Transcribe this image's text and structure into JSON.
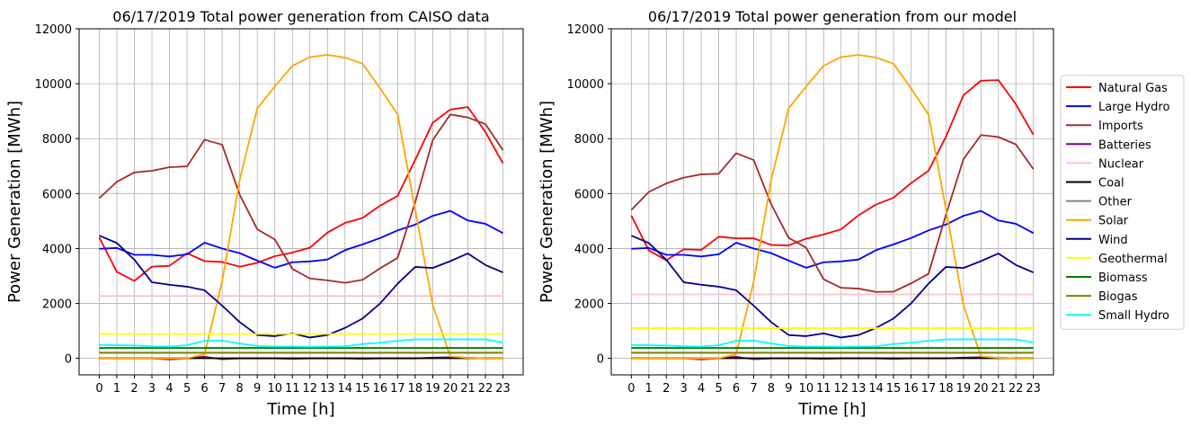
{
  "chart_data": [
    {
      "type": "line",
      "title": "06/17/2019 Total power generation from CAISO data",
      "xlabel": "Time [h]",
      "ylabel": "Power Generation [MWh]",
      "x": [
        0,
        1,
        2,
        3,
        4,
        5,
        6,
        7,
        8,
        9,
        10,
        11,
        12,
        13,
        14,
        15,
        16,
        17,
        18,
        19,
        20,
        21,
        22,
        23
      ],
      "xlim": [
        -1.15,
        24.15
      ],
      "ylim": [
        -600,
        12000
      ],
      "yticks": [
        0,
        2000,
        4000,
        6000,
        8000,
        10000,
        12000
      ],
      "grid": true,
      "series": [
        {
          "name": "Natural Gas",
          "color": "#ff0000",
          "values": [
            4400,
            3150,
            2820,
            3340,
            3370,
            3830,
            3540,
            3510,
            3340,
            3480,
            3720,
            3850,
            4030,
            4580,
            4930,
            5110,
            5560,
            5920,
            7230,
            8580,
            9060,
            9150,
            8240,
            7100
          ]
        },
        {
          "name": "Large Hydro",
          "color": "#0000ff",
          "values": [
            3990,
            4020,
            3770,
            3770,
            3710,
            3790,
            4210,
            4000,
            3830,
            3560,
            3300,
            3500,
            3530,
            3600,
            3940,
            4150,
            4380,
            4660,
            4870,
            5190,
            5370,
            5020,
            4900,
            4560
          ]
        },
        {
          "name": "Imports",
          "color": "#a52a2a",
          "values": [
            5830,
            6430,
            6770,
            6830,
            6960,
            6990,
            7960,
            7780,
            5960,
            4700,
            4330,
            3260,
            2910,
            2840,
            2750,
            2860,
            3280,
            3660,
            5680,
            7950,
            8880,
            8770,
            8530,
            7580
          ]
        },
        {
          "name": "Batteries",
          "color": "#800080",
          "values": [
            0,
            0,
            0,
            0,
            -40,
            0,
            60,
            -30,
            0,
            0,
            0,
            -20,
            0,
            0,
            0,
            -20,
            0,
            0,
            0,
            30,
            40,
            20,
            0,
            0
          ]
        },
        {
          "name": "Nuclear",
          "color": "#ffc0cb",
          "values": [
            2270,
            2270,
            2270,
            2270,
            2270,
            2270,
            2270,
            2270,
            2270,
            2270,
            2270,
            2270,
            2270,
            2270,
            2270,
            2270,
            2270,
            2270,
            2270,
            2270,
            2270,
            2270,
            2270,
            2270
          ]
        },
        {
          "name": "Coal",
          "color": "#000000",
          "values": [
            5,
            5,
            5,
            5,
            5,
            5,
            5,
            5,
            5,
            5,
            5,
            5,
            5,
            5,
            5,
            5,
            5,
            5,
            5,
            5,
            5,
            5,
            5,
            5
          ]
        },
        {
          "name": "Other",
          "color": "#808080",
          "values": [
            200,
            200,
            200,
            200,
            200,
            200,
            200,
            200,
            200,
            200,
            200,
            200,
            200,
            200,
            200,
            200,
            200,
            200,
            200,
            200,
            200,
            200,
            200,
            200
          ]
        },
        {
          "name": "Solar",
          "color": "#ffa500",
          "values": [
            0,
            0,
            0,
            0,
            0,
            0,
            150,
            2800,
            6500,
            9100,
            9900,
            10650,
            10970,
            11050,
            10950,
            10730,
            9830,
            8880,
            5420,
            1940,
            70,
            20,
            0,
            0
          ]
        },
        {
          "name": "Wind",
          "color": "#00008b",
          "values": [
            4470,
            4200,
            3590,
            2770,
            2680,
            2610,
            2480,
            1920,
            1320,
            850,
            810,
            910,
            760,
            850,
            1110,
            1450,
            2000,
            2720,
            3330,
            3290,
            3540,
            3820,
            3400,
            3130
          ]
        },
        {
          "name": "Geothermal",
          "color": "#ffff00",
          "values": [
            890,
            890,
            890,
            890,
            890,
            890,
            890,
            890,
            890,
            890,
            890,
            890,
            890,
            890,
            890,
            890,
            890,
            890,
            890,
            890,
            890,
            890,
            890,
            890
          ]
        },
        {
          "name": "Biomass",
          "color": "#008000",
          "values": [
            380,
            380,
            380,
            380,
            380,
            380,
            380,
            380,
            380,
            380,
            380,
            380,
            380,
            380,
            380,
            380,
            380,
            380,
            380,
            380,
            380,
            380,
            380,
            380
          ]
        },
        {
          "name": "Biogas",
          "color": "#808000",
          "values": [
            210,
            210,
            210,
            210,
            210,
            210,
            210,
            210,
            210,
            210,
            210,
            210,
            210,
            210,
            210,
            210,
            210,
            210,
            210,
            210,
            210,
            210,
            210,
            210
          ]
        },
        {
          "name": "Small Hydro",
          "color": "#00ffff",
          "values": [
            490,
            480,
            470,
            440,
            430,
            480,
            640,
            650,
            540,
            450,
            430,
            430,
            420,
            430,
            440,
            520,
            570,
            640,
            690,
            690,
            690,
            690,
            690,
            580
          ]
        }
      ]
    },
    {
      "type": "line",
      "title": "06/17/2019 Total power generation from our model",
      "xlabel": "Time [h]",
      "ylabel": "Power Generation [MWh]",
      "x": [
        0,
        1,
        2,
        3,
        4,
        5,
        6,
        7,
        8,
        9,
        10,
        11,
        12,
        13,
        14,
        15,
        16,
        17,
        18,
        19,
        20,
        21,
        22,
        23
      ],
      "xlim": [
        -1.15,
        24.15
      ],
      "ylim": [
        -600,
        12000
      ],
      "yticks": [
        0,
        2000,
        4000,
        6000,
        8000,
        10000,
        12000
      ],
      "grid": true,
      "legend": "right",
      "series": [
        {
          "name": "Natural Gas",
          "color": "#ff0000",
          "values": [
            5200,
            3930,
            3570,
            3970,
            3950,
            4430,
            4370,
            4370,
            4130,
            4110,
            4360,
            4510,
            4700,
            5210,
            5600,
            5850,
            6380,
            6830,
            8070,
            9580,
            10110,
            10130,
            9250,
            8140
          ]
        },
        {
          "name": "Large Hydro",
          "color": "#0000ff",
          "values": [
            3990,
            4020,
            3770,
            3770,
            3710,
            3790,
            4210,
            4000,
            3830,
            3560,
            3300,
            3500,
            3530,
            3600,
            3940,
            4150,
            4380,
            4660,
            4870,
            5190,
            5370,
            5020,
            4900,
            4560
          ]
        },
        {
          "name": "Imports",
          "color": "#a52a2a",
          "values": [
            5400,
            6060,
            6370,
            6580,
            6700,
            6720,
            7470,
            7220,
            5610,
            4390,
            4030,
            2880,
            2570,
            2540,
            2420,
            2430,
            2730,
            3080,
            5230,
            7250,
            8130,
            8060,
            7790,
            6890
          ]
        },
        {
          "name": "Batteries",
          "color": "#800080",
          "values": [
            0,
            0,
            0,
            0,
            -40,
            0,
            60,
            -30,
            0,
            0,
            0,
            -20,
            0,
            0,
            0,
            -20,
            0,
            0,
            0,
            30,
            40,
            20,
            0,
            0
          ]
        },
        {
          "name": "Nuclear",
          "color": "#ffc0cb",
          "values": [
            2330,
            2330,
            2330,
            2330,
            2330,
            2330,
            2330,
            2330,
            2330,
            2330,
            2330,
            2330,
            2330,
            2330,
            2330,
            2330,
            2330,
            2330,
            2330,
            2330,
            2330,
            2330,
            2330,
            2330
          ]
        },
        {
          "name": "Coal",
          "color": "#000000",
          "values": [
            5,
            5,
            5,
            5,
            5,
            5,
            5,
            5,
            5,
            5,
            5,
            5,
            5,
            5,
            5,
            5,
            5,
            5,
            5,
            5,
            5,
            5,
            5,
            5
          ]
        },
        {
          "name": "Other",
          "color": "#808080",
          "values": [
            200,
            200,
            200,
            200,
            200,
            200,
            200,
            200,
            200,
            200,
            200,
            200,
            200,
            200,
            200,
            200,
            200,
            200,
            200,
            200,
            200,
            200,
            200,
            200
          ]
        },
        {
          "name": "Solar",
          "color": "#ffa500",
          "values": [
            0,
            0,
            0,
            0,
            0,
            0,
            150,
            2800,
            6500,
            9100,
            9900,
            10650,
            10970,
            11050,
            10950,
            10730,
            9830,
            8880,
            5420,
            1940,
            70,
            20,
            0,
            0
          ]
        },
        {
          "name": "Wind",
          "color": "#00008b",
          "values": [
            4470,
            4200,
            3590,
            2770,
            2680,
            2610,
            2480,
            1920,
            1320,
            850,
            810,
            910,
            760,
            850,
            1110,
            1450,
            2000,
            2720,
            3330,
            3290,
            3540,
            3820,
            3400,
            3130
          ]
        },
        {
          "name": "Geothermal",
          "color": "#ffff00",
          "values": [
            1100,
            1100,
            1100,
            1100,
            1100,
            1100,
            1100,
            1100,
            1100,
            1100,
            1100,
            1100,
            1100,
            1100,
            1100,
            1100,
            1100,
            1100,
            1100,
            1100,
            1100,
            1100,
            1100,
            1100
          ]
        },
        {
          "name": "Biomass",
          "color": "#008000",
          "values": [
            380,
            380,
            380,
            380,
            380,
            380,
            380,
            380,
            380,
            380,
            380,
            380,
            380,
            380,
            380,
            380,
            380,
            380,
            380,
            380,
            380,
            380,
            380,
            380
          ]
        },
        {
          "name": "Biogas",
          "color": "#808000",
          "values": [
            210,
            210,
            210,
            210,
            210,
            210,
            210,
            210,
            210,
            210,
            210,
            210,
            210,
            210,
            210,
            210,
            210,
            210,
            210,
            210,
            210,
            210,
            210,
            210
          ]
        },
        {
          "name": "Small Hydro",
          "color": "#00ffff",
          "values": [
            490,
            480,
            470,
            440,
            430,
            480,
            640,
            650,
            540,
            450,
            430,
            430,
            420,
            430,
            440,
            520,
            570,
            640,
            690,
            690,
            690,
            690,
            690,
            580
          ]
        }
      ]
    }
  ]
}
